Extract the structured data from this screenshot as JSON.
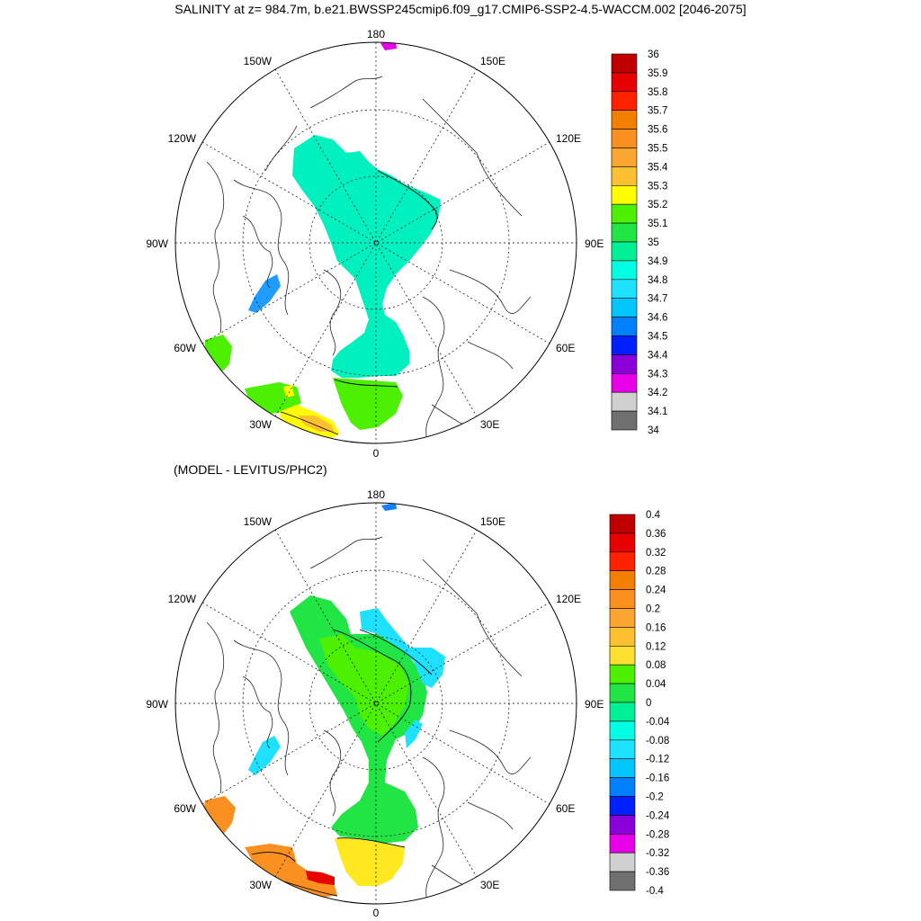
{
  "title": "SALINITY at z= 984.7m, b.e21.BWSSP245cmip6.f09_g17.CMIP6-SSP2-4.5-WACCM.002 [2046-2075]",
  "subtitle": "(MODEL - LEVITUS/PHC2)",
  "lon_labels": {
    "top": "180",
    "bottom": "0",
    "left": "90W",
    "right": "90E",
    "upper_left": "150W",
    "upper_right": "150E",
    "mid_upper_left": "120W",
    "mid_upper_right": "120E",
    "mid_lower_left": "60W",
    "mid_lower_right": "60E",
    "lower_left": "30W",
    "lower_right": "30E"
  },
  "colorbar_top": {
    "labels": [
      "36",
      "35.9",
      "35.8",
      "35.7",
      "35.6",
      "35.5",
      "35.4",
      "35.3",
      "35.2",
      "35.1",
      "35",
      "34.9",
      "34.8",
      "34.7",
      "34.6",
      "34.5",
      "34.4",
      "34.3",
      "34.2",
      "34.1",
      "34"
    ],
    "colors": [
      "#c00000",
      "#e60000",
      "#ff2200",
      "#f27f00",
      "#f99020",
      "#fca530",
      "#fdc030",
      "#fffd00",
      "#4cf000",
      "#21e445",
      "#00f097",
      "#00ffe2",
      "#1ee1ff",
      "#00c5ff",
      "#0080ff",
      "#0020ff",
      "#8a00d8",
      "#e800e8",
      "#d0d0d0",
      "#707070"
    ]
  },
  "colorbar_bottom": {
    "labels": [
      "0.4",
      "0.36",
      "0.32",
      "0.28",
      "0.24",
      "0.2",
      "0.16",
      "0.12",
      "0.08",
      "0.04",
      "0",
      "-0.04",
      "-0.08",
      "-0.12",
      "-0.16",
      "-0.2",
      "-0.24",
      "-0.28",
      "-0.32",
      "-0.36",
      "-0.4"
    ],
    "colors": [
      "#c00000",
      "#e60000",
      "#ff2200",
      "#f27f00",
      "#f99020",
      "#fca530",
      "#fdc030",
      "#ffe030",
      "#4cf000",
      "#21e445",
      "#00f097",
      "#00ffe2",
      "#1ee1ff",
      "#00c5ff",
      "#0080ff",
      "#0020ff",
      "#8a00d8",
      "#e800e8",
      "#d0d0d0",
      "#707070"
    ]
  },
  "colors": {
    "top_main": "#00f0c0",
    "top_green": "#4cf000",
    "top_green_dark": "#21e445",
    "top_yellow": "#fffd00",
    "top_orange": "#fdc030",
    "top_blue": "#1e9cff",
    "top_magenta": "#e800e8",
    "bot_green": "#4cf000",
    "bot_green_light": "#21e445",
    "bot_cyan": "#00f0d0",
    "bot_cyan_light": "#1ee1ff",
    "bot_yellow": "#ffe820",
    "bot_orange": "#f99020",
    "bot_red": "#e60000",
    "bot_blue": "#1080ff"
  }
}
